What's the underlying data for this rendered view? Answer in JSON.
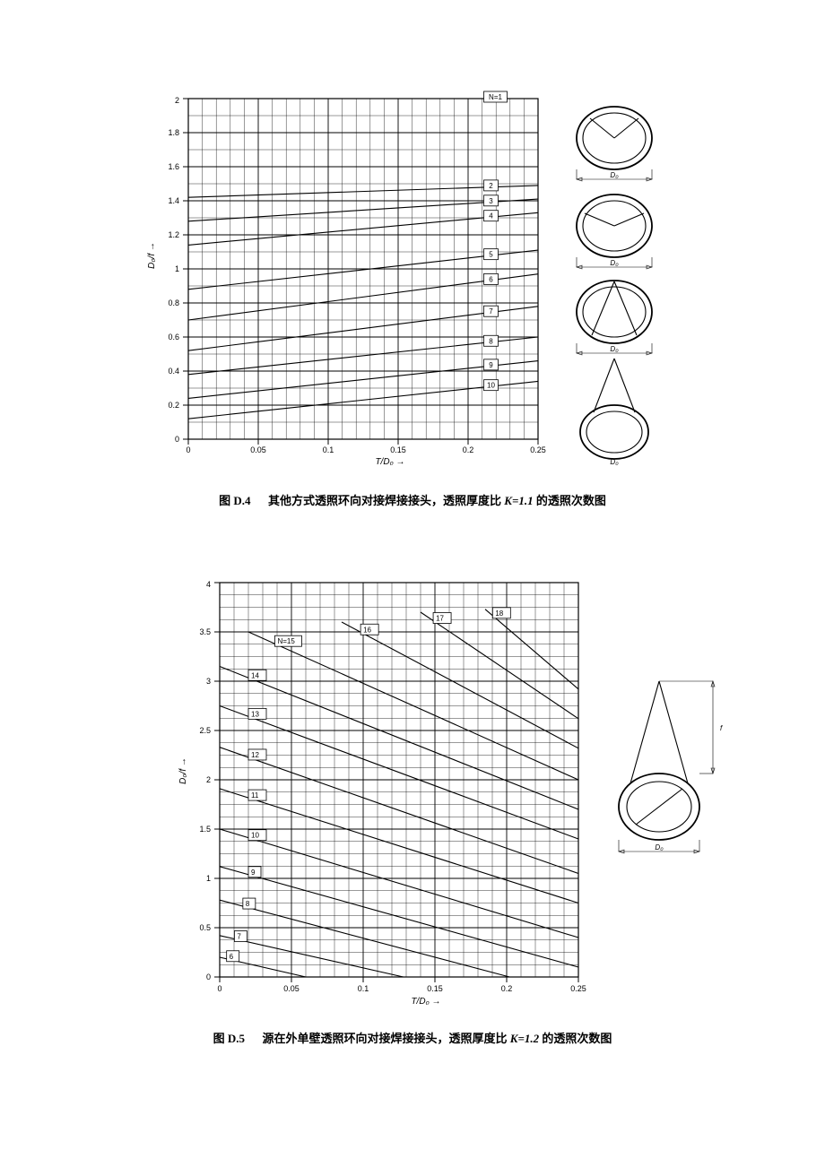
{
  "figure_d4": {
    "caption_label": "图 D.4",
    "caption_text_a": "其他方式透照环向对接焊接接头，透照厚度比 ",
    "caption_k": "K=1.1",
    "caption_text_b": " 的透照次数图",
    "type": "line",
    "background_color": "#ffffff",
    "grid_color": "#000000",
    "curve_color": "#000000",
    "xlabel": "T/D₀ →",
    "ylabel": "D₀/f →",
    "xlim": [
      0,
      0.25
    ],
    "ylim": [
      0,
      2
    ],
    "x_major_step": 0.05,
    "x_minor_step": 0.01,
    "y_major_step": 0.2,
    "y_minor_step": 0.1,
    "xtick_labels": [
      "0",
      "0.05",
      "0.1",
      "0.15",
      "0.2",
      "0.25"
    ],
    "ytick_labels": [
      "0",
      "0.2",
      "0.4",
      "0.6",
      "0.8",
      "1",
      "1.2",
      "1.4",
      "1.6",
      "1.8",
      "2"
    ],
    "title_fontsize": 13,
    "label_fontsize": 9,
    "line_width": 1.1,
    "curves": [
      {
        "n": "N=1",
        "x1": 0.0,
        "y1": 2.0,
        "x2": 0.25,
        "y2": 2.0
      },
      {
        "n": "2",
        "x1": 0.0,
        "y1": 1.42,
        "x2": 0.25,
        "y2": 1.49
      },
      {
        "n": "3",
        "x1": 0.0,
        "y1": 1.28,
        "x2": 0.25,
        "y2": 1.41
      },
      {
        "n": "4",
        "x1": 0.0,
        "y1": 1.14,
        "x2": 0.25,
        "y2": 1.33
      },
      {
        "n": "5",
        "x1": 0.0,
        "y1": 0.88,
        "x2": 0.25,
        "y2": 1.11
      },
      {
        "n": "6",
        "x1": 0.0,
        "y1": 0.7,
        "x2": 0.25,
        "y2": 0.97
      },
      {
        "n": "7",
        "x1": 0.0,
        "y1": 0.52,
        "x2": 0.25,
        "y2": 0.78
      },
      {
        "n": "8",
        "x1": 0.0,
        "y1": 0.38,
        "x2": 0.25,
        "y2": 0.6
      },
      {
        "n": "9",
        "x1": 0.0,
        "y1": 0.24,
        "x2": 0.25,
        "y2": 0.46
      },
      {
        "n": "10",
        "x1": 0.0,
        "y1": 0.12,
        "x2": 0.25,
        "y2": 0.34
      }
    ],
    "side_diagrams_count": 4,
    "side_diagram_label": "D₀"
  },
  "figure_d5": {
    "caption_label": "图 D.5",
    "caption_text_a": "源在外单壁透照环向对接焊接接头，透照厚度比 ",
    "caption_k": "K=1.2",
    "caption_text_b": " 的透照次数图",
    "type": "line",
    "background_color": "#ffffff",
    "grid_color": "#000000",
    "curve_color": "#000000",
    "xlabel": "T/D₀ →",
    "ylabel": "D₀/f →",
    "xlim": [
      0,
      0.25
    ],
    "ylim": [
      0,
      4
    ],
    "x_major_step": 0.05,
    "x_minor_step": 0.01,
    "y_major_step": 0.5,
    "y_minor_step": 0.125,
    "xtick_labels": [
      "0",
      "0.05",
      "0.1",
      "0.15",
      "0.2",
      "0.25"
    ],
    "ytick_labels": [
      "0",
      "0.5",
      "1",
      "1.5",
      "2",
      "2.5",
      "3",
      "3.5",
      "4"
    ],
    "title_fontsize": 13,
    "label_fontsize": 9,
    "line_width": 1.1,
    "curves": [
      {
        "n": "6",
        "x1": 0.0,
        "y1": 0.2,
        "x2": 0.06,
        "y2": 0.0
      },
      {
        "n": "7",
        "x1": 0.0,
        "y1": 0.42,
        "x2": 0.128,
        "y2": 0.0
      },
      {
        "n": "8",
        "x1": 0.0,
        "y1": 0.78,
        "x2": 0.202,
        "y2": 0.0
      },
      {
        "n": "9",
        "x1": 0.0,
        "y1": 1.12,
        "x2": 0.25,
        "y2": 0.1
      },
      {
        "n": "10",
        "x1": 0.0,
        "y1": 1.5,
        "x2": 0.25,
        "y2": 0.4
      },
      {
        "n": "11",
        "x1": 0.0,
        "y1": 1.91,
        "x2": 0.25,
        "y2": 0.75
      },
      {
        "n": "12",
        "x1": 0.0,
        "y1": 2.33,
        "x2": 0.25,
        "y2": 1.05
      },
      {
        "n": "13",
        "x1": 0.0,
        "y1": 2.75,
        "x2": 0.25,
        "y2": 1.4
      },
      {
        "n": "14",
        "x1": 0.0,
        "y1": 3.15,
        "x2": 0.25,
        "y2": 1.7
      },
      {
        "n": "15",
        "x1": 0.02,
        "y1": 3.5,
        "x2": 0.25,
        "y2": 2.0
      },
      {
        "n": "16",
        "x1": 0.085,
        "y1": 3.6,
        "x2": 0.25,
        "y2": 2.32
      },
      {
        "n": "17",
        "x1": 0.14,
        "y1": 3.7,
        "x2": 0.25,
        "y2": 2.62
      },
      {
        "n": "18",
        "x1": 0.185,
        "y1": 3.73,
        "x2": 0.25,
        "y2": 2.92
      }
    ],
    "side_diagram_label_d": "D₀",
    "side_diagram_label_f": "f"
  }
}
